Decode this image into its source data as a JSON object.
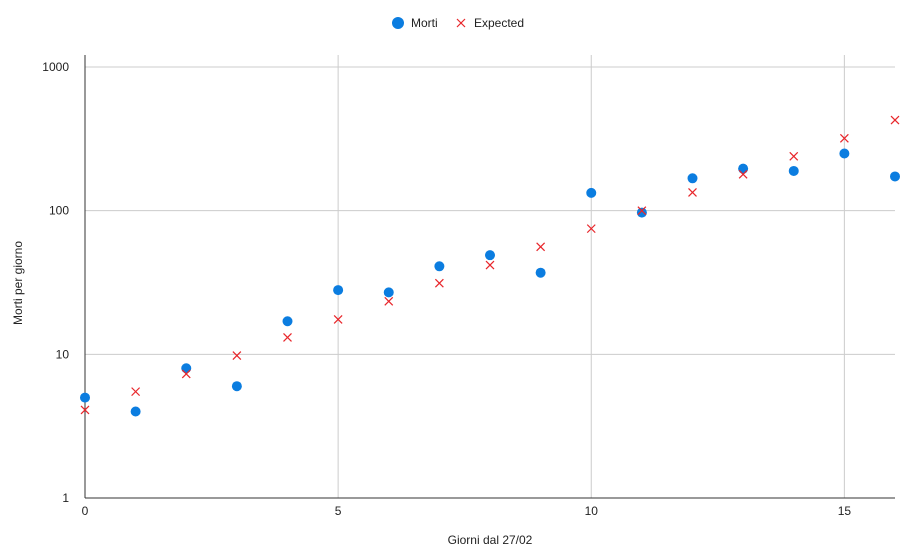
{
  "chart_data": {
    "type": "scatter",
    "title": "",
    "xlabel": "Giorni dal 27/02",
    "ylabel": "Morti per giorno",
    "xlim": [
      0,
      16
    ],
    "ylim": [
      1,
      1000
    ],
    "y_scale": "log",
    "x_ticks": [
      0,
      5,
      10,
      15
    ],
    "y_ticks": [
      1,
      10,
      100,
      1000
    ],
    "grid": true,
    "legend_position": "top",
    "series": [
      {
        "name": "Morti",
        "marker": "circle",
        "color": "#0b7de0",
        "x": [
          0,
          1,
          2,
          3,
          4,
          5,
          6,
          7,
          8,
          9,
          10,
          11,
          12,
          13,
          14,
          15,
          16
        ],
        "y": [
          5,
          4,
          8,
          6,
          17,
          28,
          27,
          41,
          49,
          37,
          133,
          97,
          168,
          196,
          189,
          250,
          173
        ]
      },
      {
        "name": "Expected",
        "marker": "x",
        "color": "#e8262b",
        "x": [
          0,
          1,
          2,
          3,
          4,
          5,
          6,
          7,
          8,
          9,
          10,
          11,
          12,
          13,
          14,
          15,
          16
        ],
        "y": [
          4.1,
          5.5,
          7.3,
          9.8,
          13.1,
          17.5,
          23.4,
          31.3,
          41.8,
          56,
          75,
          100,
          134,
          179,
          239,
          319,
          427
        ]
      }
    ]
  }
}
